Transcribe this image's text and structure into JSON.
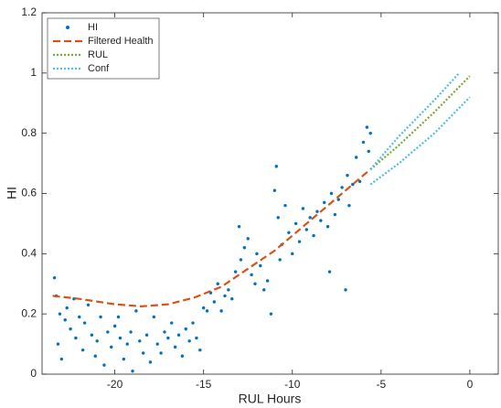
{
  "chart_data": {
    "type": "line",
    "xlabel": "RUL Hours",
    "ylabel": "HI",
    "xlim": [
      -24.1,
      1.6
    ],
    "xticks": [
      -20,
      -15,
      -10,
      -5,
      0
    ],
    "ylim": [
      0,
      1.2
    ],
    "yticks": [
      0,
      0.2,
      0.4,
      0.6,
      0.8,
      1,
      1.2
    ],
    "legend": "upper left",
    "series": [
      {
        "name": "HI",
        "style": "scatter",
        "color": "#0072bd",
        "x": [
          -23.4,
          -23.3,
          -23.2,
          -23.1,
          -23.0,
          -22.8,
          -22.7,
          -22.5,
          -22.3,
          -22.2,
          -22.0,
          -21.8,
          -21.7,
          -21.5,
          -21.3,
          -21.1,
          -21.0,
          -20.8,
          -20.6,
          -20.4,
          -20.2,
          -20.0,
          -19.8,
          -19.7,
          -19.5,
          -19.3,
          -19.1,
          -19.0,
          -18.8,
          -18.6,
          -18.4,
          -18.2,
          -18.0,
          -17.8,
          -17.6,
          -17.4,
          -17.2,
          -17.0,
          -16.8,
          -16.6,
          -16.4,
          -16.2,
          -16.0,
          -15.8,
          -15.6,
          -15.4,
          -15.2,
          -15.0,
          -14.8,
          -14.6,
          -14.4,
          -14.2,
          -14.0,
          -13.8,
          -13.6,
          -13.4,
          -13.2,
          -13.0,
          -12.9,
          -12.7,
          -12.5,
          -12.3,
          -12.1,
          -12.0,
          -11.8,
          -11.6,
          -11.4,
          -11.2,
          -11.0,
          -10.9,
          -10.8,
          -10.7,
          -10.6,
          -10.4,
          -10.2,
          -10.0,
          -9.8,
          -9.6,
          -9.4,
          -9.2,
          -9.0,
          -8.8,
          -8.6,
          -8.4,
          -8.2,
          -8.0,
          -7.9,
          -7.8,
          -7.6,
          -7.4,
          -7.2,
          -7.0,
          -6.9,
          -6.8,
          -6.6,
          -6.4,
          -6.2,
          -6.0,
          -5.8,
          -5.7,
          -5.6
        ],
        "values": [
          0.32,
          0.26,
          0.1,
          0.2,
          0.05,
          0.18,
          0.22,
          0.15,
          0.25,
          0.12,
          0.19,
          0.08,
          0.17,
          0.23,
          0.13,
          0.06,
          0.11,
          0.19,
          0.03,
          0.14,
          0.09,
          0.16,
          0.19,
          0.12,
          0.05,
          0.1,
          0.14,
          0.01,
          0.21,
          0.11,
          0.07,
          0.13,
          0.04,
          0.19,
          0.1,
          0.07,
          0.14,
          0.12,
          0.17,
          0.09,
          0.13,
          0.06,
          0.15,
          0.11,
          0.17,
          0.12,
          0.08,
          0.22,
          0.21,
          0.27,
          0.24,
          0.3,
          0.21,
          0.26,
          0.28,
          0.25,
          0.34,
          0.49,
          0.38,
          0.42,
          0.45,
          0.33,
          0.3,
          0.4,
          0.36,
          0.28,
          0.31,
          0.2,
          0.61,
          0.69,
          0.52,
          0.38,
          0.43,
          0.56,
          0.47,
          0.4,
          0.5,
          0.44,
          0.55,
          0.48,
          0.52,
          0.46,
          0.54,
          0.51,
          0.57,
          0.49,
          0.34,
          0.6,
          0.53,
          0.58,
          0.62,
          0.28,
          0.66,
          0.56,
          0.63,
          0.72,
          0.64,
          0.77,
          0.82,
          0.74,
          0.8
        ]
      },
      {
        "name": "Filtered Health",
        "style": "dashed",
        "color": "#d95319",
        "x": [
          -23.5,
          -22,
          -20,
          -18.5,
          -17,
          -15.5,
          -14,
          -13,
          -12,
          -11,
          -10,
          -9,
          -8,
          -7,
          -6,
          -5.6
        ],
        "values": [
          0.26,
          0.25,
          0.232,
          0.225,
          0.232,
          0.255,
          0.29,
          0.33,
          0.37,
          0.41,
          0.46,
          0.51,
          0.56,
          0.61,
          0.66,
          0.68
        ]
      },
      {
        "name": "RUL",
        "style": "dotted",
        "color": "#77ac30",
        "x": [
          -5.6,
          -4,
          -2,
          0
        ],
        "values": [
          0.68,
          0.76,
          0.87,
          0.99
        ]
      },
      {
        "name": "Conf",
        "style": "dotted",
        "color": "#4dbeee",
        "x": [
          -5.6,
          -4,
          -2,
          -0.6
        ],
        "values": [
          0.68,
          0.79,
          0.91,
          1.0
        ],
        "lower_x": [
          -5.6,
          -4,
          -2,
          0
        ],
        "lower": [
          0.63,
          0.7,
          0.8,
          0.92
        ]
      }
    ]
  }
}
